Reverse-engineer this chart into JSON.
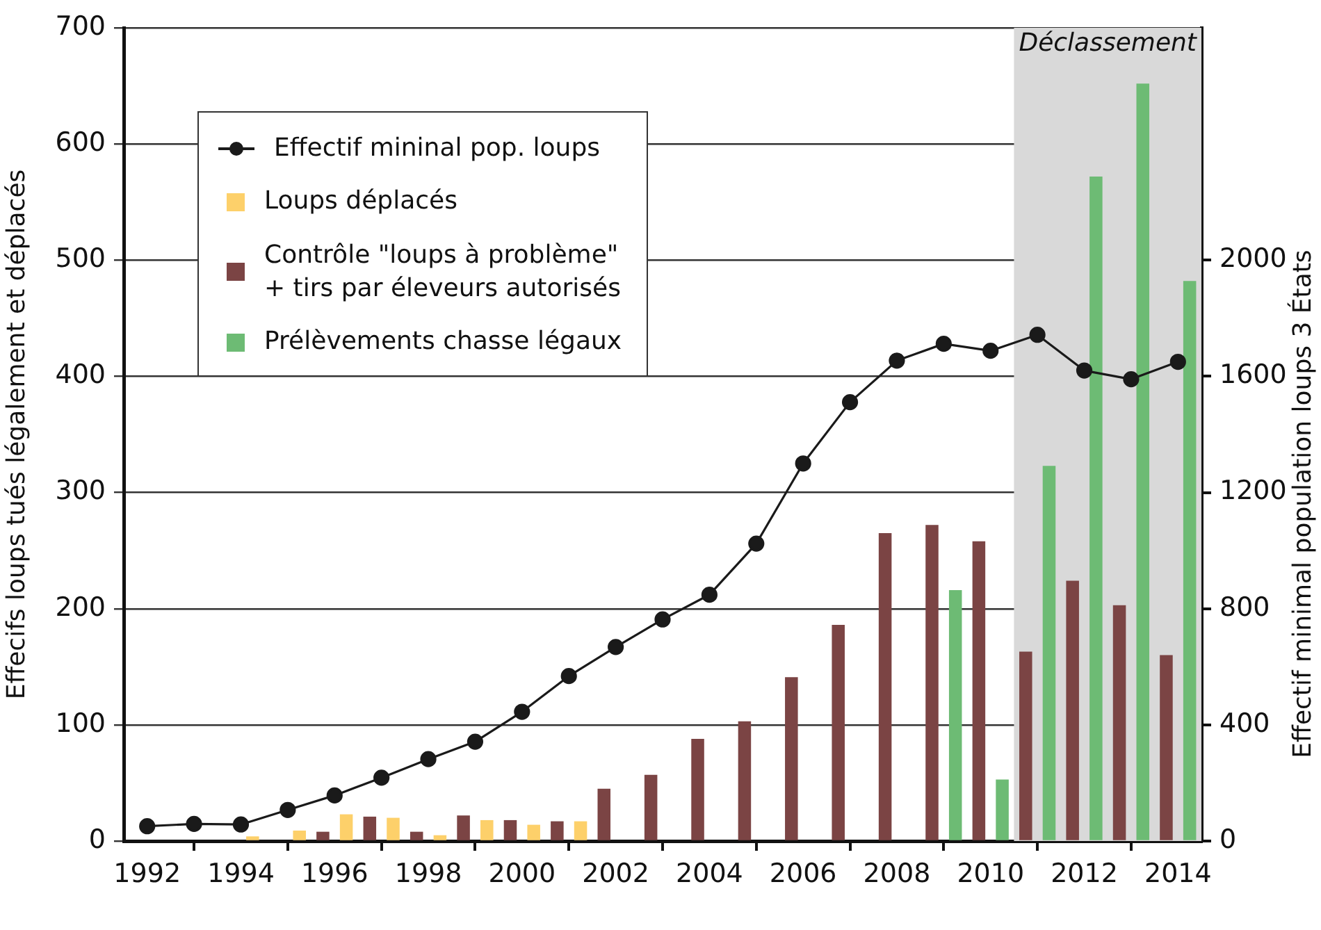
{
  "chart_data": {
    "type": "bar",
    "ylabel": "Effecifs loups tués légalement et déplacés",
    "y2label": "Effectif minimal population loups 3 États",
    "x": [
      1992,
      1993,
      1994,
      1995,
      1996,
      1997,
      1998,
      1999,
      2000,
      2001,
      2002,
      2003,
      2004,
      2005,
      2006,
      2007,
      2008,
      2009,
      2010,
      2011,
      2012,
      2013,
      2014
    ],
    "series": [
      {
        "name": "Effectif mininal pop. loups",
        "type": "line",
        "axis": "y2",
        "color": "#1a1a1a",
        "values": [
          51,
          59,
          57,
          107,
          157,
          218,
          282,
          342,
          445,
          568,
          668,
          763,
          848,
          1024,
          1300,
          1511,
          1654,
          1712,
          1688,
          1743,
          1620,
          1590,
          1650
        ]
      },
      {
        "name": "Loups déplacés",
        "x": [
          1994.25,
          1995.25,
          1996.25,
          1997.25,
          1998.25,
          1999.25,
          2000.25,
          2001.25
        ],
        "color": "#fdd06a",
        "values": [
          4,
          9,
          23,
          20,
          5,
          18,
          14,
          17
        ]
      },
      {
        "name": "Contrôle \"loups à problème\"\n+ tirs par éleveurs autorisés",
        "x": [
          1995.75,
          1996.75,
          1997.75,
          1998.75,
          1999.75,
          2000.75,
          2001.75,
          2002.75,
          2003.75,
          2004.75,
          2005.75,
          2006.75,
          2007.75,
          2008.75,
          2009.75,
          2010.75,
          2011.75,
          2012.75,
          2013.75
        ],
        "color": "#7b4444",
        "values": [
          8,
          21,
          8,
          22,
          18,
          17,
          45,
          57,
          88,
          103,
          141,
          186,
          265,
          272,
          258,
          163,
          224,
          203,
          160
        ]
      },
      {
        "name": "Prélèvements chasse légaux",
        "x": [
          2009.25,
          2010.25,
          2011.25,
          2012.25,
          2013.25,
          2014.25
        ],
        "color": "#6dbb74",
        "values": [
          216,
          53,
          323,
          572,
          652,
          482
        ]
      }
    ],
    "xlim": [
      1991.5,
      2014.5
    ],
    "xticks": [
      1992,
      1994,
      1996,
      1998,
      2000,
      2002,
      2004,
      2006,
      2008,
      2010,
      2012,
      2014
    ],
    "ylim": [
      0,
      700
    ],
    "yticks": [
      0,
      100,
      200,
      300,
      400,
      500,
      600,
      700
    ],
    "y2lim": [
      0,
      2800
    ],
    "y2ticks": [
      0,
      400,
      800,
      1200,
      1600,
      2000
    ],
    "bands": [
      {
        "axis": "x",
        "from": 2010.5,
        "to": 2014.5,
        "label": "Déclassement",
        "color": "#d9d9d9"
      }
    ],
    "grid": "y",
    "legend": "top left",
    "marker": "circle",
    "line_style": "solid"
  }
}
